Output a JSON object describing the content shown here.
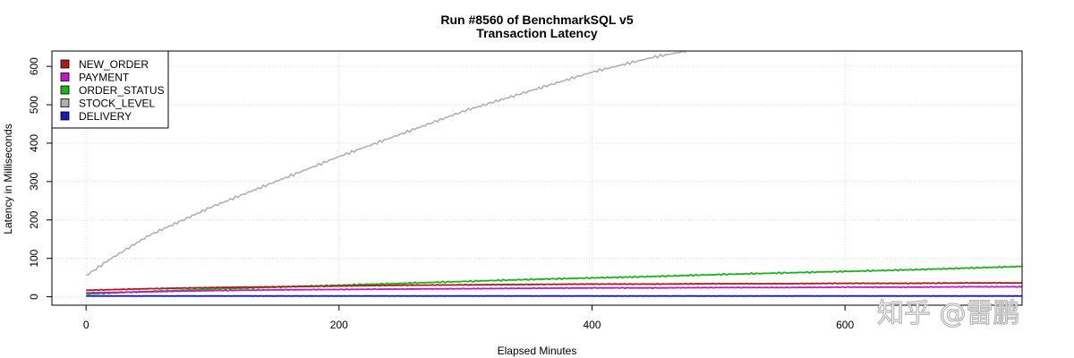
{
  "chart_data": {
    "type": "line",
    "title": "Run #8560 of BenchmarkSQL v5",
    "subtitle": "Transaction Latency",
    "xlabel": "Elapsed Minutes",
    "ylabel": "Latency in Milliseconds",
    "xlim": [
      -27,
      740
    ],
    "ylim": [
      -22,
      640
    ],
    "x_ticks": [
      0,
      200,
      400,
      600
    ],
    "y_ticks": [
      0,
      100,
      200,
      300,
      400,
      500,
      600
    ],
    "grid": true,
    "legend_position": "top-left",
    "series": [
      {
        "name": "NEW_ORDER",
        "color": "#b21a1a",
        "x": [
          0,
          50,
          100,
          150,
          200,
          250,
          300,
          350,
          400,
          450,
          500,
          550,
          600,
          650,
          700,
          750
        ],
        "y": [
          17,
          21,
          24,
          26,
          28,
          30,
          31,
          32,
          33,
          33,
          34,
          34,
          35,
          35,
          36,
          36
        ]
      },
      {
        "name": "PAYMENT",
        "color": "#c21ac2",
        "x": [
          0,
          50,
          100,
          150,
          200,
          250,
          300,
          350,
          400,
          450,
          500,
          550,
          600,
          650,
          700,
          750
        ],
        "y": [
          10,
          13,
          16,
          18,
          19,
          20,
          21,
          22,
          23,
          23,
          24,
          24,
          25,
          25,
          26,
          26
        ]
      },
      {
        "name": "ORDER_STATUS",
        "color": "#19b419",
        "x": [
          0,
          50,
          100,
          150,
          200,
          250,
          300,
          350,
          400,
          450,
          500,
          550,
          600,
          650,
          700,
          750
        ],
        "y": [
          7,
          14,
          20,
          25,
          30,
          35,
          40,
          45,
          49,
          53,
          58,
          62,
          66,
          70,
          75,
          80
        ]
      },
      {
        "name": "STOCK_LEVEL",
        "color": "#b0b0b0",
        "x": [
          0,
          20,
          50,
          100,
          150,
          200,
          250,
          300,
          350,
          400,
          450,
          475
        ],
        "y": [
          55,
          100,
          160,
          235,
          300,
          365,
          425,
          485,
          535,
          585,
          625,
          640
        ]
      },
      {
        "name": "DELIVERY",
        "color": "#1a1ab4",
        "x": [
          0,
          100,
          200,
          300,
          400,
          500,
          600,
          700,
          750
        ],
        "y": [
          2,
          2,
          2,
          2,
          2,
          2,
          2,
          2,
          2
        ]
      }
    ]
  },
  "watermark": {
    "text": "知乎 @雷鹏"
  }
}
